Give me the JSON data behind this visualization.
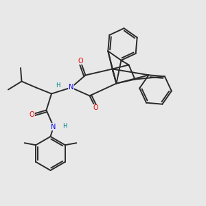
{
  "bg_color": "#e8e8e8",
  "line_color": "#2a2a2a",
  "bond_width": 1.4,
  "atom_colors": {
    "N": "#0000ee",
    "O": "#ee0000",
    "H": "#008080",
    "C": "#2a2a2a"
  },
  "figsize": [
    3.0,
    3.0
  ],
  "dpi": 100
}
